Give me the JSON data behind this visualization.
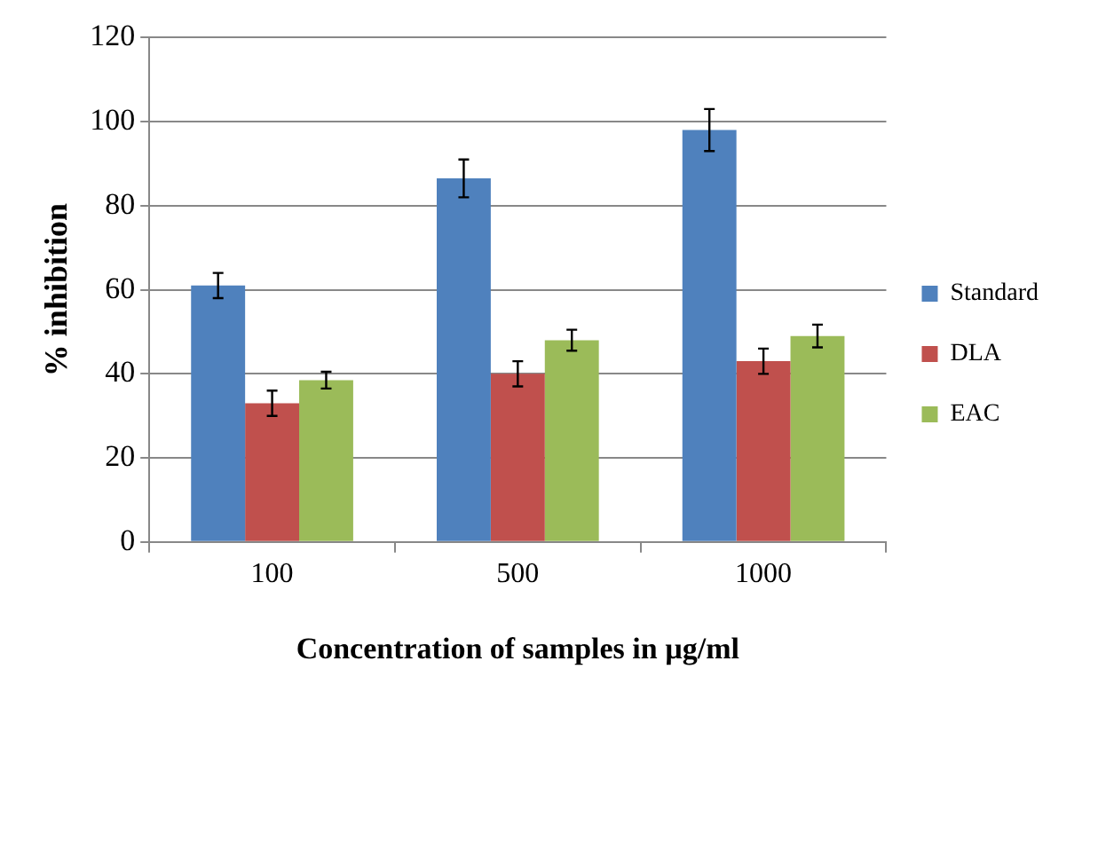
{
  "chart_data": {
    "type": "bar",
    "xlabel": "Concentration of samples in µg/ml",
    "ylabel": "% inhibition",
    "categories": [
      "100",
      "500",
      "1000"
    ],
    "series": [
      {
        "name": "Standard",
        "color": "#4f81bd",
        "values": [
          61,
          86.5,
          98
        ],
        "errors": [
          3,
          4.5,
          5
        ]
      },
      {
        "name": "DLA",
        "color": "#c0504d",
        "values": [
          33,
          40,
          43
        ],
        "errors": [
          3,
          3,
          3
        ]
      },
      {
        "name": "EAC",
        "color": "#9bbb59",
        "values": [
          38.5,
          48,
          49
        ],
        "errors": [
          2,
          2.5,
          2.7
        ]
      }
    ],
    "ylim": [
      0,
      120
    ],
    "yticks": [
      0,
      20,
      40,
      60,
      80,
      100,
      120
    ],
    "grid": "y",
    "legend": "right"
  }
}
